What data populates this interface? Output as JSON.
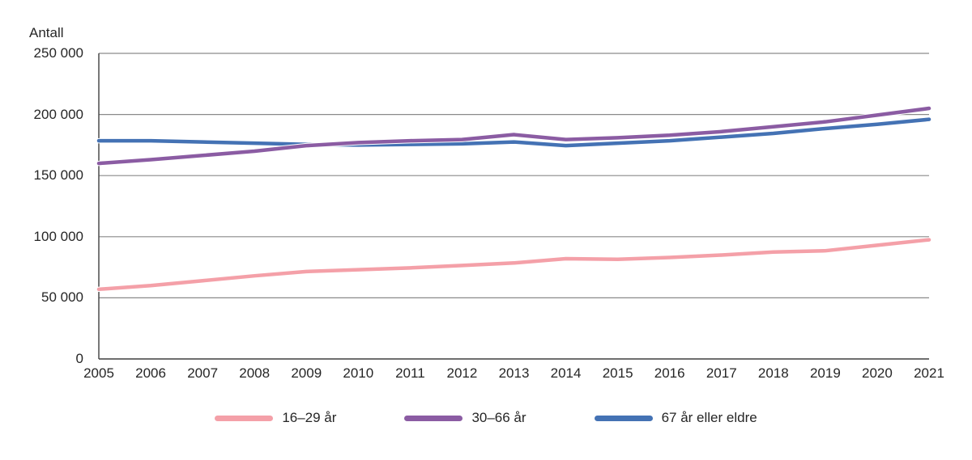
{
  "chart": {
    "unit_label": "Antall",
    "y_tick_labels_bottom_up": [
      "0",
      "50 000",
      "100 000",
      "150 000",
      "200 000",
      "250 000"
    ]
  },
  "chart_data": {
    "type": "line",
    "title": "",
    "ylabel": "Antall",
    "xlabel": "",
    "ylim": [
      0,
      250000
    ],
    "ytick_step": 50000,
    "grid": true,
    "legend_position": "bottom",
    "x": [
      2005,
      2006,
      2007,
      2008,
      2009,
      2010,
      2011,
      2012,
      2013,
      2014,
      2015,
      2016,
      2017,
      2018,
      2019,
      2020,
      2021
    ],
    "series": [
      {
        "name": "16–29 år",
        "color": "#F4A0A8",
        "values": [
          57000,
          60000,
          64000,
          68000,
          71500,
          73000,
          74500,
          76500,
          78500,
          82000,
          81500,
          83000,
          85000,
          87500,
          88500,
          93000,
          97500
        ]
      },
      {
        "name": "30–66 år",
        "color": "#8B5CA3",
        "values": [
          160000,
          163000,
          166500,
          170000,
          174500,
          177000,
          178500,
          179500,
          183500,
          179500,
          181000,
          183000,
          186000,
          190000,
          194000,
          199500,
          205000
        ]
      },
      {
        "name": "67 år eller eldre",
        "color": "#4472B4",
        "values": [
          178500,
          178500,
          177500,
          176500,
          175500,
          175000,
          175500,
          176000,
          177500,
          174500,
          176500,
          178500,
          181500,
          184500,
          188500,
          192000,
          196000
        ]
      }
    ]
  }
}
